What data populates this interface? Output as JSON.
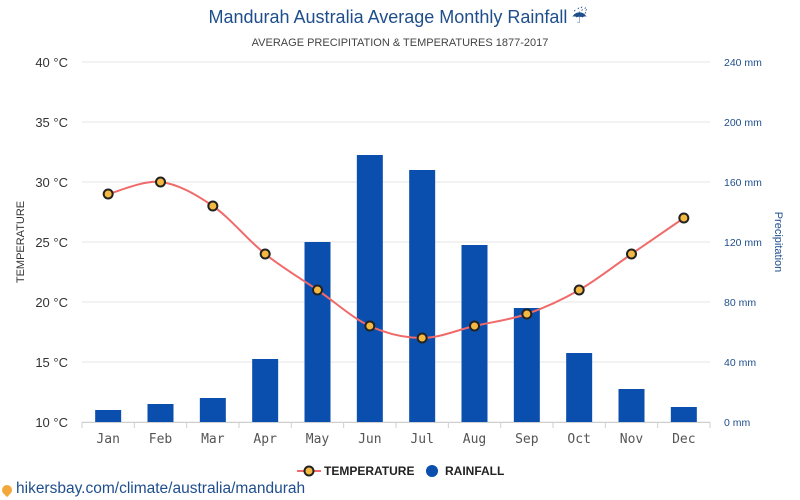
{
  "title": "Mandurah Australia Average Monthly Rainfall",
  "title_icon": "umbrella-icon",
  "subtitle": "AVERAGE PRECIPITATION & TEMPERATURES 1877-2017",
  "footer": "hikersbay.com/climate/australia/mandurah",
  "colors": {
    "rain": "#0b4fae",
    "temperature_line": "#f06a6a",
    "marker_fill": "#f4b942",
    "marker_stroke": "#222222",
    "title": "#1f4e8c",
    "grid": "#e6e6e6"
  },
  "chart_data": {
    "type": "bar",
    "categories": [
      "Jan",
      "Feb",
      "Mar",
      "Apr",
      "May",
      "Jun",
      "Jul",
      "Aug",
      "Sep",
      "Oct",
      "Nov",
      "Dec"
    ],
    "series": [
      {
        "name": "TEMPERATURE",
        "type": "line",
        "axis": "left",
        "unit": "°C",
        "values": [
          29,
          30,
          28,
          24,
          21,
          18,
          17,
          18,
          19,
          21,
          24,
          27
        ]
      },
      {
        "name": "RAINFALL",
        "type": "bar",
        "axis": "right",
        "unit": "mm",
        "values": [
          8,
          12,
          16,
          42,
          120,
          178,
          168,
          118,
          76,
          46,
          22,
          10
        ]
      }
    ],
    "y_left": {
      "label": "TEMPERATURE",
      "min": 10,
      "max": 40,
      "ticks": [
        "10 °C",
        "15 °C",
        "20 °C",
        "25 °C",
        "30 °C",
        "35 °C",
        "40 °C"
      ]
    },
    "y_right": {
      "label": "Precipitation",
      "min": 0,
      "max": 240,
      "ticks": [
        "0 mm",
        "40 mm",
        "80 mm",
        "120 mm",
        "160 mm",
        "200 mm",
        "240 mm"
      ]
    },
    "grid": true,
    "legend": {
      "position": "bottom-center",
      "items": [
        "TEMPERATURE",
        "RAINFALL"
      ]
    }
  }
}
